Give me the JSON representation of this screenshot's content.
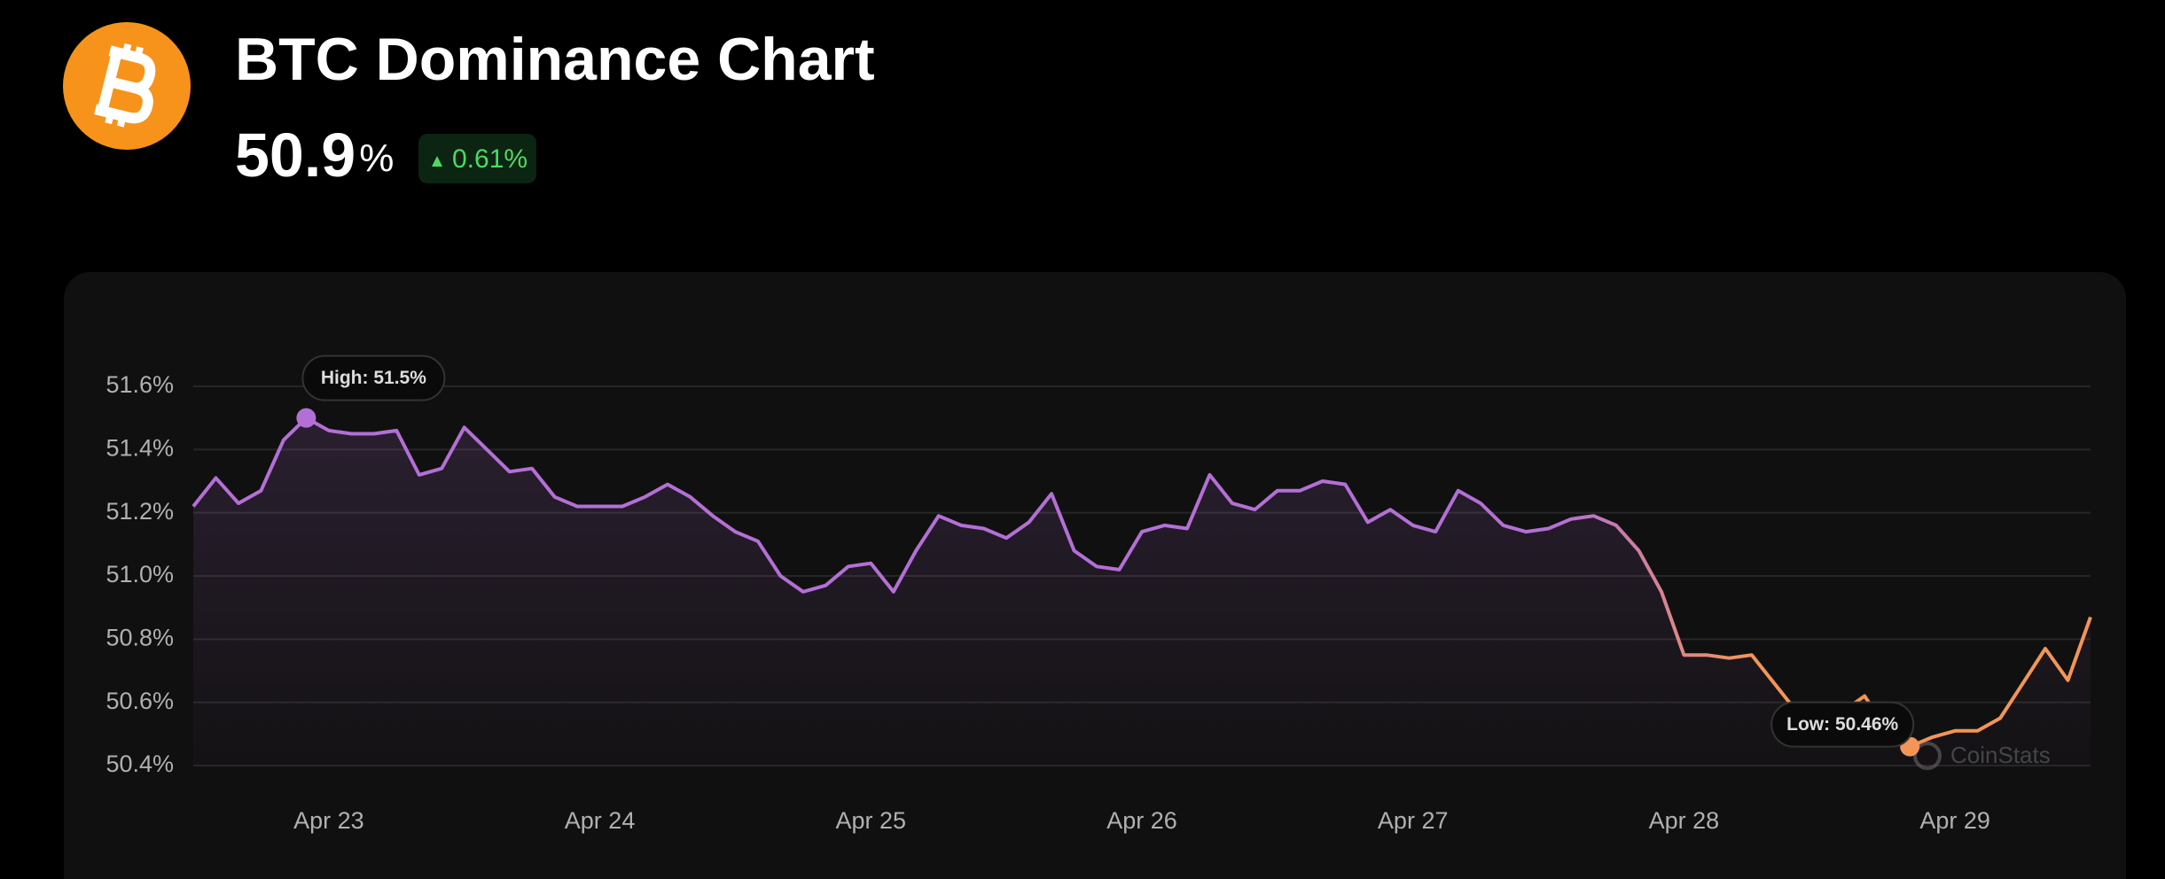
{
  "header": {
    "title": "BTC Dominance Chart",
    "value": "50.9",
    "unit": "%",
    "change": "0.61%"
  },
  "chart_data": {
    "type": "line",
    "categories": [
      null,
      null,
      null,
      null,
      null,
      null,
      "Apr 23",
      null,
      null,
      null,
      null,
      null,
      null,
      null,
      null,
      null,
      null,
      null,
      "Apr 24",
      null,
      null,
      null,
      null,
      null,
      null,
      null,
      null,
      null,
      null,
      null,
      "Apr 25",
      null,
      null,
      null,
      null,
      null,
      null,
      null,
      null,
      null,
      null,
      null,
      "Apr 26",
      null,
      null,
      null,
      null,
      null,
      null,
      null,
      null,
      null,
      null,
      null,
      "Apr 27",
      null,
      null,
      null,
      null,
      null,
      null,
      null,
      null,
      null,
      null,
      null,
      "Apr 28",
      null,
      null,
      null,
      null,
      null,
      null,
      null,
      null,
      null,
      null,
      null,
      "Apr 29",
      null,
      null,
      null,
      null,
      null,
      null
    ],
    "values": [
      51.22,
      51.31,
      51.23,
      51.27,
      51.43,
      51.5,
      51.46,
      51.45,
      51.45,
      51.46,
      51.32,
      51.34,
      51.47,
      51.4,
      51.33,
      51.34,
      51.25,
      51.22,
      51.22,
      51.22,
      51.25,
      51.29,
      51.25,
      51.19,
      51.14,
      51.11,
      51.0,
      50.95,
      50.97,
      51.03,
      51.04,
      50.95,
      51.08,
      51.19,
      51.16,
      51.15,
      51.12,
      51.17,
      51.26,
      51.08,
      51.03,
      51.02,
      51.14,
      51.16,
      51.15,
      51.32,
      51.23,
      51.21,
      51.27,
      51.27,
      51.3,
      51.29,
      51.17,
      51.21,
      51.16,
      51.14,
      51.27,
      51.23,
      51.16,
      51.14,
      51.15,
      51.18,
      51.19,
      51.16,
      51.08,
      50.95,
      50.75,
      50.75,
      50.74,
      50.75,
      50.66,
      50.57,
      50.53,
      50.57,
      50.62,
      50.51,
      50.46,
      50.49,
      50.51,
      50.51,
      50.55,
      50.66,
      50.77,
      50.67,
      50.87
    ],
    "colors": [
      "#b46fd6",
      "#f29557"
    ],
    "ylim": [
      50.4,
      51.6
    ],
    "yticks": [
      {
        "value": 50.4,
        "label": "50.4%"
      },
      {
        "value": 50.6,
        "label": "50.6%"
      },
      {
        "value": 50.8,
        "label": "50.8%"
      },
      {
        "value": 51.0,
        "label": "51.0%"
      },
      {
        "value": 51.2,
        "label": "51.2%"
      },
      {
        "value": 51.4,
        "label": "51.4%"
      },
      {
        "value": 51.6,
        "label": "51.6%"
      }
    ],
    "grid": true,
    "annotations": [
      "High: 51.5%",
      "Low: 50.46%"
    ],
    "watermark": "CoinStats"
  }
}
